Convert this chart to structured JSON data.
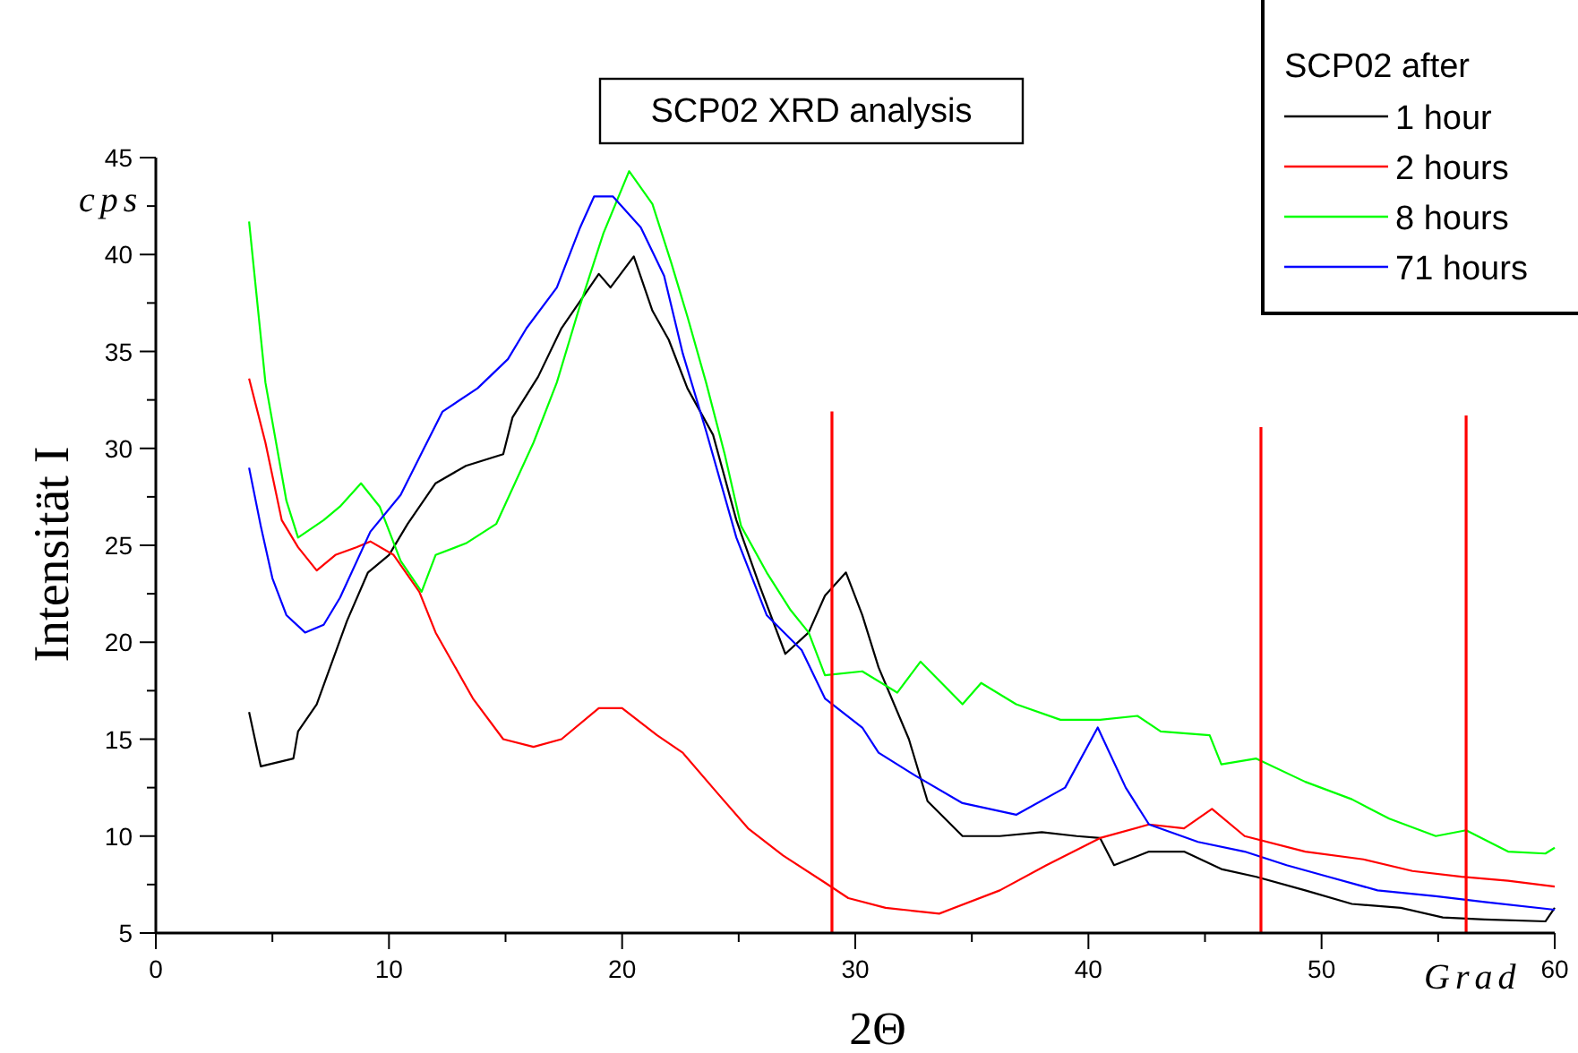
{
  "chart_data": {
    "type": "line",
    "title": "SCP02 XRD analysis",
    "xlabel": "2Θ",
    "ylabel": "Intensität I",
    "legend_title": "SCP02 after",
    "annotations": [
      "cps",
      "Grad"
    ],
    "xlim": [
      0,
      60
    ],
    "ylim": [
      5,
      45
    ],
    "xticks": [
      0,
      {
        "value": 5,
        "label": null
      },
      10,
      {
        "value": 15,
        "label": null
      },
      20,
      {
        "value": 25,
        "label": null
      },
      30,
      {
        "value": 35,
        "label": null
      },
      40,
      {
        "value": 45,
        "label": null
      },
      50,
      {
        "value": 55,
        "label": null
      },
      60
    ],
    "yticks": [
      5,
      {
        "value": 7.5,
        "label": null
      },
      10,
      {
        "value": 12.5,
        "label": null
      },
      15,
      {
        "value": 17.5,
        "label": null
      },
      20,
      {
        "value": 22.5,
        "label": null
      },
      25,
      {
        "value": 27.5,
        "label": null
      },
      30,
      {
        "value": 32.5,
        "label": null
      },
      35,
      {
        "value": 37.5,
        "label": null
      },
      40,
      {
        "value": 42.5,
        "label": null
      },
      45
    ],
    "grid": false,
    "legend": "top right",
    "line_style": "solid",
    "marker": "none",
    "series": [
      {
        "name": "1 hour",
        "color": "#000000",
        "x": [
          4.0,
          4.5,
          5.9,
          6.1,
          6.9,
          8.2,
          9.1,
          10.0,
          10.8,
          12.0,
          13.3,
          14.9,
          15.3,
          16.4,
          17.4,
          19.0,
          19.5,
          20.5,
          21.3,
          22.0,
          22.8,
          23.9,
          24.9,
          25.9,
          27.0,
          28.0,
          28.7,
          29.6,
          30.3,
          31.0,
          32.3,
          33.1,
          34.6,
          36.2,
          38.0,
          39.5,
          40.5,
          41.1,
          42.6,
          44.1,
          45.7,
          47.2,
          49.3,
          51.3,
          53.4,
          55.2,
          57.0,
          59.6,
          60.0
        ],
        "values": [
          16.4,
          13.6,
          14.0,
          15.4,
          16.8,
          21.1,
          23.6,
          24.5,
          26.1,
          28.2,
          29.1,
          29.7,
          31.6,
          33.7,
          36.2,
          39.0,
          38.3,
          39.9,
          37.1,
          35.6,
          33.1,
          30.7,
          26.3,
          22.9,
          19.4,
          20.5,
          22.4,
          23.6,
          21.4,
          18.7,
          15.0,
          11.8,
          10.0,
          10.0,
          10.2,
          10.0,
          9.9,
          8.5,
          9.2,
          9.2,
          8.3,
          7.9,
          7.2,
          6.5,
          6.3,
          5.8,
          5.7,
          5.6,
          6.3
        ]
      },
      {
        "name": "2 hours",
        "color": "#ff0000",
        "x": [
          4.0,
          4.7,
          5.4,
          6.1,
          6.9,
          7.7,
          8.6,
          9.2,
          10.2,
          11.3,
          12.0,
          13.6,
          14.9,
          16.2,
          17.4,
          19.0,
          20.0,
          21.5,
          22.6,
          24.1,
          25.4,
          26.9,
          28.7,
          29.7,
          31.3,
          33.6,
          36.2,
          38.2,
          40.5,
          42.6,
          44.1,
          45.3,
          46.7,
          49.3,
          51.8,
          53.9,
          56.0,
          58.0,
          60.0
        ],
        "values": [
          33.6,
          30.3,
          26.3,
          24.9,
          23.7,
          24.5,
          24.9,
          25.2,
          24.5,
          22.6,
          20.5,
          17.1,
          15.0,
          14.6,
          15.0,
          16.6,
          16.6,
          15.2,
          14.3,
          12.2,
          10.4,
          9.0,
          7.6,
          6.8,
          6.3,
          6.0,
          7.2,
          8.5,
          9.9,
          10.6,
          10.4,
          11.4,
          10.0,
          9.2,
          8.8,
          8.2,
          7.9,
          7.7,
          7.4
        ]
      },
      {
        "name": "8 hours",
        "color": "#00ff00",
        "x": [
          4.0,
          4.7,
          5.6,
          6.1,
          7.2,
          7.9,
          8.8,
          9.6,
          10.5,
          11.4,
          12.0,
          13.3,
          14.6,
          16.2,
          17.2,
          18.2,
          19.2,
          20.3,
          21.3,
          22.1,
          22.8,
          23.6,
          24.4,
          25.1,
          26.2,
          27.2,
          28.0,
          28.7,
          30.3,
          31.8,
          32.8,
          34.6,
          35.4,
          36.9,
          38.8,
          40.5,
          42.1,
          43.1,
          45.2,
          45.7,
          47.2,
          49.3,
          51.3,
          52.9,
          54.9,
          56.2,
          58.0,
          59.6,
          60.0
        ],
        "values": [
          41.7,
          33.4,
          27.3,
          25.4,
          26.3,
          27.0,
          28.2,
          27.0,
          24.2,
          22.6,
          24.5,
          25.1,
          26.1,
          30.3,
          33.4,
          37.4,
          41.1,
          44.3,
          42.6,
          39.6,
          36.8,
          33.4,
          29.7,
          26.0,
          23.6,
          21.7,
          20.5,
          18.3,
          18.5,
          17.4,
          19.0,
          16.8,
          17.9,
          16.8,
          16.0,
          16.0,
          16.2,
          15.4,
          15.2,
          13.7,
          14.0,
          12.8,
          11.9,
          10.9,
          10.0,
          10.3,
          9.2,
          9.1,
          9.4
        ]
      },
      {
        "name": "71 hours",
        "color": "#0000ff",
        "x": [
          4.0,
          4.5,
          5.0,
          5.6,
          6.4,
          7.2,
          7.9,
          9.2,
          10.5,
          11.5,
          12.3,
          13.8,
          15.1,
          15.9,
          17.2,
          18.2,
          18.8,
          19.6,
          20.8,
          21.8,
          22.6,
          23.6,
          24.9,
          26.2,
          27.7,
          28.7,
          30.3,
          31.0,
          32.6,
          34.6,
          36.9,
          39.0,
          40.4,
          41.6,
          42.6,
          44.7,
          46.7,
          48.5,
          50.3,
          52.4,
          54.9,
          57.0,
          60.0
        ],
        "values": [
          29.0,
          26.0,
          23.3,
          21.4,
          20.5,
          20.9,
          22.3,
          25.7,
          27.6,
          30.0,
          31.9,
          33.1,
          34.6,
          36.2,
          38.3,
          41.4,
          43.0,
          43.0,
          41.4,
          38.9,
          34.9,
          30.9,
          25.4,
          21.4,
          19.6,
          17.1,
          15.6,
          14.3,
          13.1,
          11.7,
          11.1,
          12.5,
          15.6,
          12.5,
          10.6,
          9.7,
          9.2,
          8.5,
          7.9,
          7.2,
          6.9,
          6.6,
          6.2
        ]
      },
      {
        "color": "#ff0000",
        "x": [
          29.0,
          29.0
        ],
        "values": [
          5,
          31.9
        ]
      },
      {
        "color": "#ff0000",
        "x": [
          47.4,
          47.4
        ],
        "values": [
          5,
          31.1
        ]
      },
      {
        "color": "#ff0000",
        "x": [
          56.2,
          56.2
        ],
        "values": [
          5,
          31.7
        ]
      }
    ]
  }
}
